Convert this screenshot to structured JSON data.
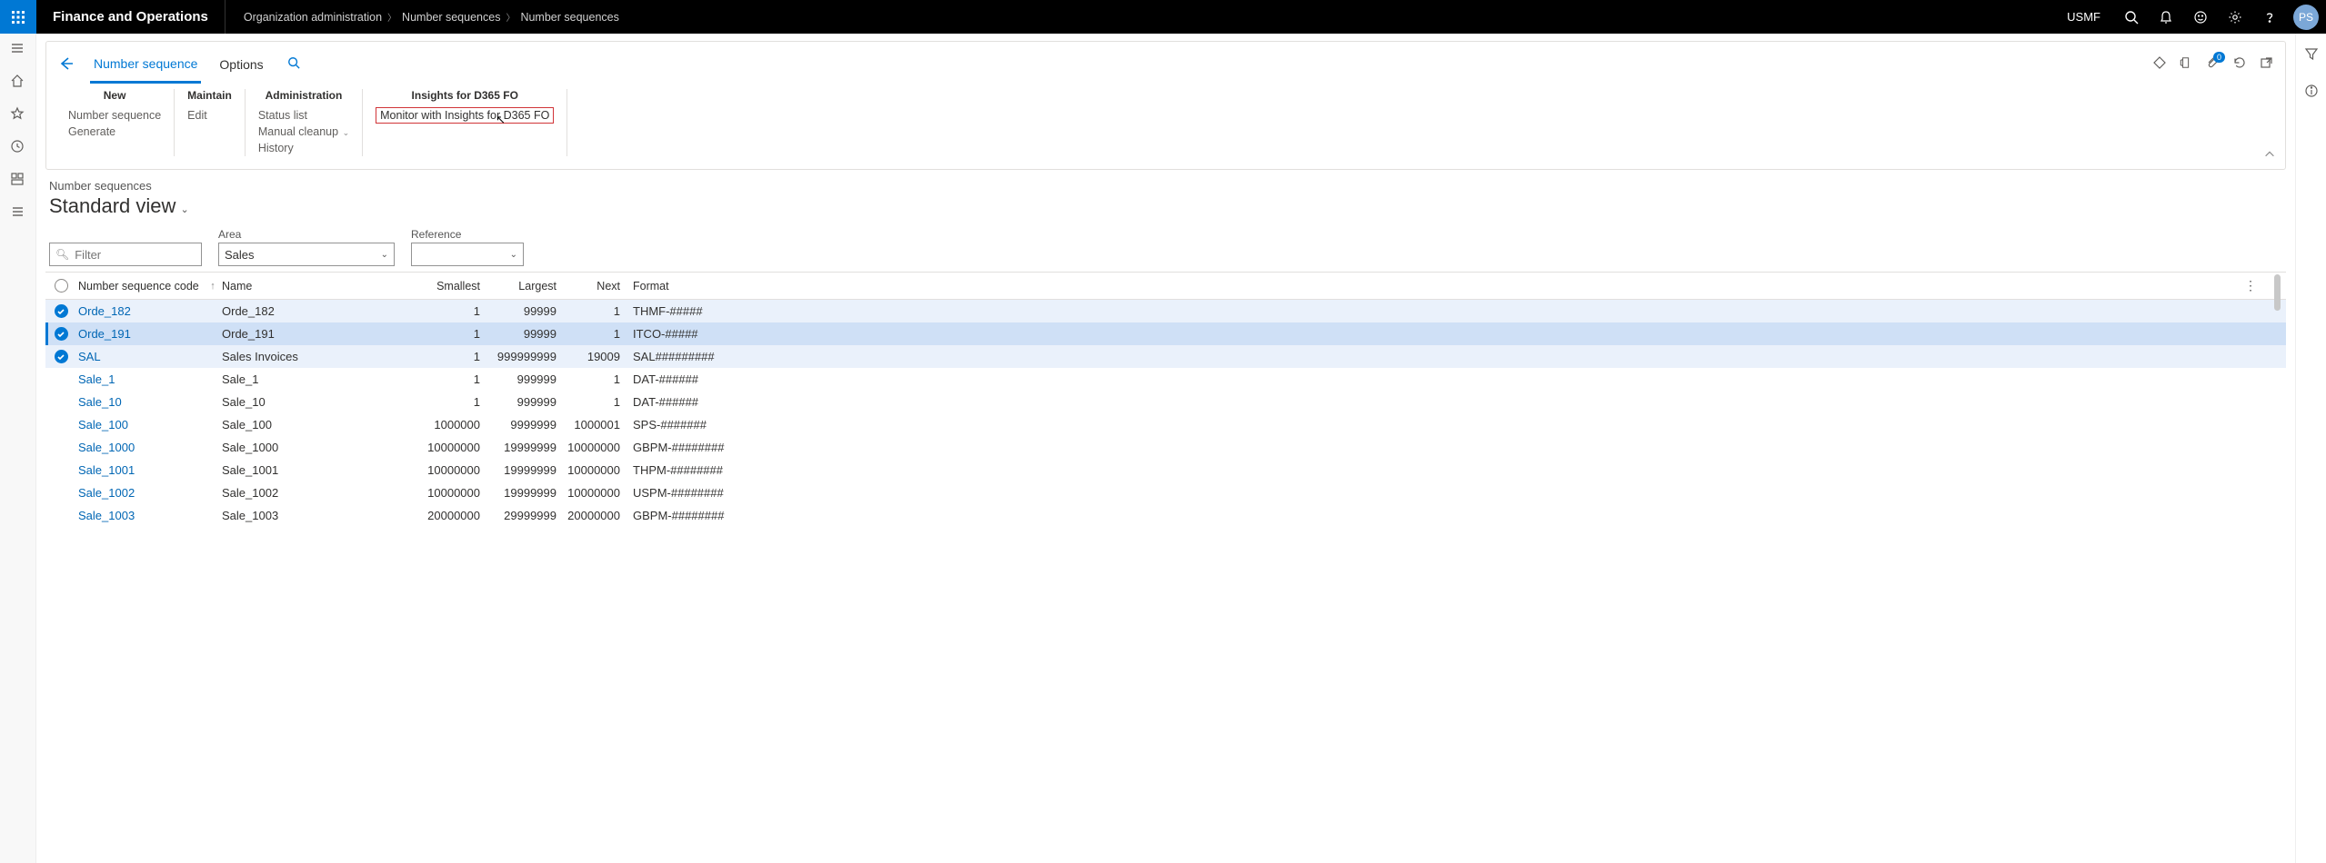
{
  "topbar": {
    "brand": "Finance and Operations",
    "breadcrumbs": [
      "Organization administration",
      "Number sequences",
      "Number sequences"
    ],
    "company": "USMF",
    "avatar": "PS"
  },
  "actionpane": {
    "tabs": {
      "active": "Number sequence",
      "other": "Options"
    },
    "groups": {
      "new": {
        "title": "New",
        "number_sequence": "Number sequence",
        "generate": "Generate"
      },
      "maintain": {
        "title": "Maintain",
        "edit": "Edit"
      },
      "administration": {
        "title": "Administration",
        "status_list": "Status list",
        "manual_cleanup": "Manual cleanup",
        "history": "History"
      },
      "insights": {
        "title": "Insights for D365 FO",
        "monitor": "Monitor with Insights for D365 FO"
      }
    },
    "attach_badge": "0"
  },
  "list": {
    "title": "Number sequences",
    "view": "Standard view",
    "filters": {
      "filter_placeholder": "Filter",
      "area_label": "Area",
      "area_value": "Sales",
      "reference_label": "Reference",
      "reference_value": ""
    },
    "columns": {
      "code": "Number sequence code",
      "name": "Name",
      "smallest": "Smallest",
      "largest": "Largest",
      "next": "Next",
      "format": "Format"
    },
    "rows": [
      {
        "selected": true,
        "strong": false,
        "code": "Orde_182",
        "name": "Orde_182",
        "smallest": "1",
        "largest": "99999",
        "next": "1",
        "format": "THMF-#####"
      },
      {
        "selected": true,
        "strong": true,
        "code": "Orde_191",
        "name": "Orde_191",
        "smallest": "1",
        "largest": "99999",
        "next": "1",
        "format": "ITCO-#####"
      },
      {
        "selected": true,
        "strong": false,
        "code": "SAL",
        "name": "Sales Invoices",
        "smallest": "1",
        "largest": "999999999",
        "next": "19009",
        "format": "SAL#########"
      },
      {
        "selected": false,
        "strong": false,
        "code": "Sale_1",
        "name": "Sale_1",
        "smallest": "1",
        "largest": "999999",
        "next": "1",
        "format": "DAT-######"
      },
      {
        "selected": false,
        "strong": false,
        "code": "Sale_10",
        "name": "Sale_10",
        "smallest": "1",
        "largest": "999999",
        "next": "1",
        "format": "DAT-######"
      },
      {
        "selected": false,
        "strong": false,
        "code": "Sale_100",
        "name": "Sale_100",
        "smallest": "1000000",
        "largest": "9999999",
        "next": "1000001",
        "format": "SPS-#######"
      },
      {
        "selected": false,
        "strong": false,
        "code": "Sale_1000",
        "name": "Sale_1000",
        "smallest": "10000000",
        "largest": "19999999",
        "next": "10000000",
        "format": "GBPM-########"
      },
      {
        "selected": false,
        "strong": false,
        "code": "Sale_1001",
        "name": "Sale_1001",
        "smallest": "10000000",
        "largest": "19999999",
        "next": "10000000",
        "format": "THPM-########"
      },
      {
        "selected": false,
        "strong": false,
        "code": "Sale_1002",
        "name": "Sale_1002",
        "smallest": "10000000",
        "largest": "19999999",
        "next": "10000000",
        "format": "USPM-########"
      },
      {
        "selected": false,
        "strong": false,
        "code": "Sale_1003",
        "name": "Sale_1003",
        "smallest": "20000000",
        "largest": "29999999",
        "next": "20000000",
        "format": "GBPM-########"
      }
    ]
  }
}
